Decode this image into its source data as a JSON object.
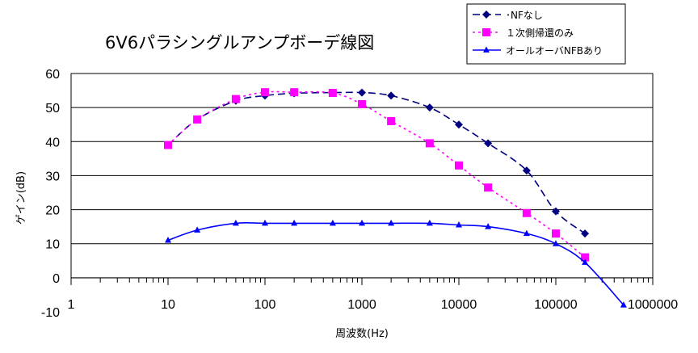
{
  "chart_data": {
    "type": "line",
    "title": "6V6パラシングルアンプボーデ線図",
    "xlabel": "周波数(Hz)",
    "ylabel": "ゲイン(dB)",
    "x_scale": "log",
    "xlim": [
      1,
      1000000
    ],
    "ylim": [
      -10,
      60
    ],
    "x_ticks": [
      "1",
      "10",
      "100",
      "1000",
      "10000",
      "100000",
      "1000000"
    ],
    "y_ticks": [
      "60",
      "50",
      "40",
      "30",
      "20",
      "10",
      "0",
      "-10"
    ],
    "grid": "horizontal",
    "legend_position": "top-right",
    "series": [
      {
        "name": "･NFなし",
        "color": "#000080",
        "marker": "diamond",
        "line": "dashed",
        "x": [
          10,
          20,
          50,
          100,
          200,
          500,
          1000,
          2000,
          5000,
          10000,
          20000,
          50000,
          100000,
          200000
        ],
        "y": [
          39,
          46.5,
          52,
          53.5,
          54.2,
          54.4,
          54.4,
          53.5,
          50,
          45,
          39.5,
          31.5,
          19.5,
          13
        ]
      },
      {
        "name": "１次側帰還のみ",
        "color": "#ff00ff",
        "marker": "square",
        "line": "dotted",
        "x": [
          10,
          20,
          50,
          100,
          200,
          500,
          1000,
          2000,
          5000,
          10000,
          20000,
          50000,
          100000,
          200000
        ],
        "y": [
          39,
          46.5,
          52.5,
          54.5,
          54.5,
          54.3,
          51,
          46,
          39.5,
          33,
          26.5,
          19,
          13,
          6
        ]
      },
      {
        "name": "オールオーバNFBあり",
        "color": "#0000ff",
        "marker": "triangle",
        "line": "solid",
        "x": [
          10,
          20,
          50,
          100,
          200,
          500,
          1000,
          2000,
          5000,
          10000,
          20000,
          50000,
          100000,
          200000,
          500000
        ],
        "y": [
          11,
          14,
          16,
          16,
          16,
          16,
          16,
          16,
          16,
          15.5,
          15,
          13,
          10,
          4.5,
          -8
        ]
      }
    ]
  }
}
